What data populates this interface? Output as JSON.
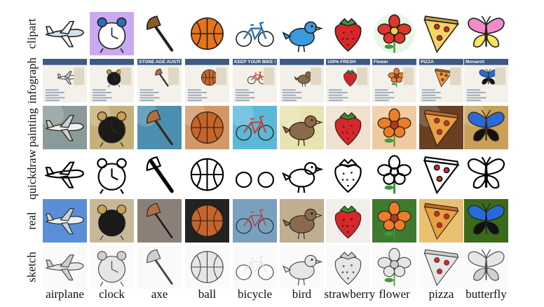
{
  "domains": [
    "clipart",
    "infograph",
    "painting",
    "quickdraw",
    "real",
    "sketch"
  ],
  "classes": [
    "airplane",
    "clock",
    "axe",
    "ball",
    "bicycle",
    "bird",
    "strawberry",
    "flower",
    "pizza",
    "butterfly"
  ],
  "infograph_text": {
    "airplane": "",
    "clock": "",
    "axe": "STONE AGE AUSTRALIANS",
    "ball": "",
    "bicycle": "KEEP YOUR BIKE SAFE",
    "bird": "",
    "strawberry": "100% FRESH",
    "flower": "Flower",
    "pizza": "PIZZA",
    "butterfly": "Monarch"
  },
  "colors": {
    "sky": "#cfe3f5",
    "clock_bg": "#c9a9f0",
    "ball_orange": "#e8741a",
    "bicycle_blue": "#2b6fb8",
    "bird_blue": "#3a9be0",
    "strawberry_red": "#d8262a",
    "flower_red": "#e0342c",
    "pizza_yellow": "#f4c542",
    "butterfly_pink": "#f58bc6",
    "leaf_green": "#3e9a3a"
  },
  "icons": {
    "airplane": "airplane-icon",
    "clock": "alarm-clock-icon",
    "axe": "axe-icon",
    "ball": "basketball-icon",
    "bicycle": "bicycle-icon",
    "bird": "bird-icon",
    "strawberry": "strawberry-icon",
    "flower": "flower-icon",
    "pizza": "pizza-slice-icon",
    "butterfly": "butterfly-icon"
  }
}
